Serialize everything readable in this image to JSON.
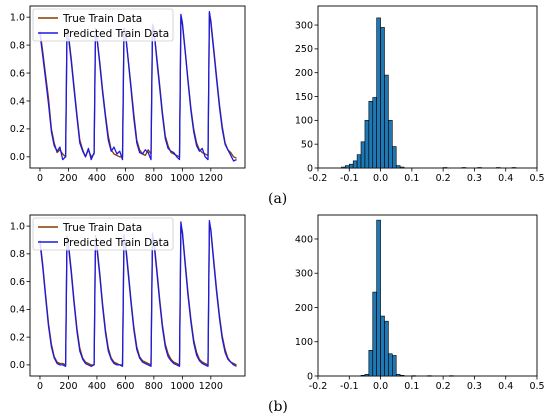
{
  "panel_labels": [
    "(a)",
    "(b)"
  ],
  "colors": {
    "true_series": "#8B3A00",
    "predicted_series": "#1a1ae6",
    "bar_fill": "#1f77b4",
    "bar_edge": "#000000"
  },
  "chart_data": [
    {
      "type": "line",
      "panel": "a",
      "xlim": [
        -70,
        1440
      ],
      "ylim": [
        -0.08,
        1.08
      ],
      "xticks": [
        0,
        200,
        400,
        600,
        800,
        1000,
        1200
      ],
      "yticks": [
        0.0,
        0.2,
        0.4,
        0.6,
        0.8,
        1.0
      ],
      "legend": "top-left",
      "series": [
        {
          "name": "True Train Data",
          "x": [
            0,
            20,
            40,
            60,
            80,
            100,
            120,
            140,
            160,
            180,
            190,
            200,
            220,
            240,
            260,
            280,
            300,
            320,
            340,
            360,
            380,
            390,
            400,
            420,
            440,
            460,
            480,
            500,
            520,
            540,
            560,
            580,
            590,
            600,
            620,
            640,
            660,
            680,
            700,
            720,
            740,
            760,
            780,
            790,
            800,
            820,
            840,
            860,
            880,
            900,
            920,
            940,
            960,
            980,
            990,
            1000,
            1020,
            1040,
            1060,
            1080,
            1100,
            1120,
            1140,
            1160,
            1180,
            1190,
            1200,
            1220,
            1240,
            1260,
            1280,
            1300,
            1320,
            1340,
            1360,
            1380
          ],
          "y": [
            0.9,
            0.75,
            0.58,
            0.42,
            0.2,
            0.1,
            0.03,
            0.05,
            0.02,
            0.0,
            0.9,
            0.88,
            0.7,
            0.5,
            0.3,
            0.12,
            0.05,
            0.0,
            0.05,
            0.0,
            0.02,
            0.9,
            0.85,
            0.68,
            0.48,
            0.3,
            0.15,
            0.05,
            0.02,
            0.01,
            0.0,
            0.0,
            0.92,
            0.88,
            0.7,
            0.5,
            0.3,
            0.12,
            0.05,
            0.02,
            0.01,
            0.05,
            0.02,
            0.93,
            0.9,
            0.72,
            0.52,
            0.32,
            0.15,
            0.08,
            0.03,
            0.02,
            0.01,
            0.0,
            1.0,
            0.95,
            0.75,
            0.55,
            0.35,
            0.2,
            0.1,
            0.05,
            0.03,
            0.02,
            0.01,
            1.03,
            0.98,
            0.78,
            0.58,
            0.38,
            0.22,
            0.1,
            0.05,
            0.03,
            0.0,
            -0.01
          ]
        },
        {
          "name": "Predicted Train Data",
          "x": [
            0,
            20,
            40,
            60,
            80,
            100,
            120,
            140,
            160,
            180,
            190,
            200,
            220,
            240,
            260,
            280,
            300,
            320,
            340,
            360,
            380,
            390,
            400,
            420,
            440,
            460,
            480,
            500,
            520,
            540,
            560,
            580,
            590,
            600,
            620,
            640,
            660,
            680,
            700,
            720,
            740,
            760,
            780,
            790,
            800,
            820,
            840,
            860,
            880,
            900,
            920,
            940,
            960,
            980,
            990,
            1000,
            1020,
            1040,
            1060,
            1080,
            1100,
            1120,
            1140,
            1160,
            1180,
            1190,
            1200,
            1220,
            1240,
            1260,
            1280,
            1300,
            1320,
            1340,
            1360,
            1380
          ],
          "y": [
            0.88,
            0.72,
            0.55,
            0.38,
            0.18,
            0.08,
            0.04,
            0.07,
            -0.02,
            0.0,
            0.92,
            0.86,
            0.68,
            0.48,
            0.28,
            0.1,
            0.04,
            0.0,
            0.06,
            -0.02,
            0.03,
            0.92,
            0.86,
            0.66,
            0.46,
            0.28,
            0.12,
            0.04,
            0.07,
            0.02,
            0.04,
            -0.02,
            0.92,
            0.9,
            0.69,
            0.48,
            0.27,
            0.1,
            0.03,
            0.02,
            0.05,
            0.03,
            -0.02,
            0.95,
            0.92,
            0.7,
            0.5,
            0.3,
            0.13,
            0.06,
            0.04,
            0.03,
            0.0,
            -0.02,
            1.02,
            0.96,
            0.76,
            0.54,
            0.33,
            0.18,
            0.08,
            0.04,
            0.06,
            0.0,
            -0.02,
            1.04,
            0.96,
            0.76,
            0.56,
            0.36,
            0.2,
            0.09,
            0.05,
            0.01,
            -0.03,
            -0.02
          ]
        }
      ]
    },
    {
      "type": "bar",
      "panel": "a",
      "xlim": [
        -0.2,
        0.5
      ],
      "ylim": [
        0,
        340
      ],
      "xticks": [
        -0.2,
        -0.1,
        0.0,
        0.1,
        0.2,
        0.3,
        0.4,
        0.5
      ],
      "yticks": [
        0,
        50,
        100,
        150,
        200,
        250,
        300
      ],
      "bin_width": 0.0125,
      "bins": [
        {
          "x": -0.125,
          "v": 2
        },
        {
          "x": -0.1125,
          "v": 5
        },
        {
          "x": -0.1,
          "v": 8
        },
        {
          "x": -0.0875,
          "v": 15
        },
        {
          "x": -0.075,
          "v": 28
        },
        {
          "x": -0.0625,
          "v": 55
        },
        {
          "x": -0.05,
          "v": 100
        },
        {
          "x": -0.0375,
          "v": 140
        },
        {
          "x": -0.025,
          "v": 148
        },
        {
          "x": -0.0125,
          "v": 315
        },
        {
          "x": 0.0,
          "v": 295
        },
        {
          "x": 0.0125,
          "v": 195
        },
        {
          "x": 0.025,
          "v": 100
        },
        {
          "x": 0.0375,
          "v": 45
        },
        {
          "x": 0.05,
          "v": 5
        },
        {
          "x": 0.0625,
          "v": 2
        },
        {
          "x": 0.2,
          "v": 1
        },
        {
          "x": 0.26,
          "v": 1
        },
        {
          "x": 0.31,
          "v": 1
        },
        {
          "x": 0.37,
          "v": 1
        },
        {
          "x": 0.42,
          "v": 1
        }
      ]
    },
    {
      "type": "line",
      "panel": "b",
      "xlim": [
        -70,
        1440
      ],
      "ylim": [
        -0.08,
        1.08
      ],
      "xticks": [
        0,
        200,
        400,
        600,
        800,
        1000,
        1200
      ],
      "yticks": [
        0.0,
        0.2,
        0.4,
        0.6,
        0.8,
        1.0
      ],
      "legend": "top-left",
      "series": [
        {
          "name": "True Train Data",
          "x": [
            0,
            20,
            40,
            60,
            80,
            100,
            120,
            140,
            160,
            180,
            190,
            200,
            220,
            240,
            260,
            280,
            300,
            320,
            340,
            360,
            380,
            390,
            400,
            420,
            440,
            460,
            480,
            500,
            520,
            540,
            560,
            580,
            590,
            600,
            620,
            640,
            660,
            680,
            700,
            720,
            740,
            760,
            780,
            790,
            800,
            820,
            840,
            860,
            880,
            900,
            920,
            940,
            960,
            980,
            990,
            1000,
            1020,
            1040,
            1060,
            1080,
            1100,
            1120,
            1140,
            1160,
            1180,
            1190,
            1200,
            1220,
            1240,
            1260,
            1280,
            1300,
            1320,
            1340,
            1360,
            1380
          ],
          "y": [
            0.9,
            0.72,
            0.5,
            0.3,
            0.15,
            0.06,
            0.02,
            0.01,
            0.01,
            0.0,
            0.92,
            0.88,
            0.68,
            0.46,
            0.26,
            0.12,
            0.05,
            0.02,
            0.01,
            0.0,
            0.0,
            0.92,
            0.86,
            0.66,
            0.44,
            0.25,
            0.12,
            0.05,
            0.02,
            0.01,
            0.0,
            0.0,
            0.93,
            0.89,
            0.68,
            0.46,
            0.27,
            0.13,
            0.06,
            0.03,
            0.02,
            0.01,
            0.0,
            0.94,
            0.9,
            0.7,
            0.48,
            0.29,
            0.15,
            0.08,
            0.04,
            0.02,
            0.01,
            0.0,
            1.0,
            0.96,
            0.74,
            0.52,
            0.33,
            0.18,
            0.09,
            0.04,
            0.02,
            0.01,
            0.0,
            1.02,
            0.98,
            0.76,
            0.55,
            0.36,
            0.21,
            0.11,
            0.05,
            0.02,
            0.01,
            0.0
          ]
        },
        {
          "name": "Predicted Train Data",
          "x": [
            0,
            20,
            40,
            60,
            80,
            100,
            120,
            140,
            160,
            180,
            190,
            200,
            220,
            240,
            260,
            280,
            300,
            320,
            340,
            360,
            380,
            390,
            400,
            420,
            440,
            460,
            480,
            500,
            520,
            540,
            560,
            580,
            590,
            600,
            620,
            640,
            660,
            680,
            700,
            720,
            740,
            760,
            780,
            790,
            800,
            820,
            840,
            860,
            880,
            900,
            920,
            940,
            960,
            980,
            990,
            1000,
            1020,
            1040,
            1060,
            1080,
            1100,
            1120,
            1140,
            1160,
            1180,
            1190,
            1200,
            1220,
            1240,
            1260,
            1280,
            1300,
            1320,
            1340,
            1360,
            1380
          ],
          "y": [
            0.88,
            0.7,
            0.48,
            0.28,
            0.13,
            0.05,
            0.01,
            0.0,
            0.0,
            -0.01,
            0.93,
            0.86,
            0.66,
            0.44,
            0.24,
            0.1,
            0.04,
            0.01,
            0.0,
            -0.01,
            0.0,
            0.93,
            0.84,
            0.64,
            0.42,
            0.23,
            0.1,
            0.04,
            0.01,
            0.0,
            0.0,
            -0.01,
            0.94,
            0.87,
            0.66,
            0.44,
            0.25,
            0.11,
            0.05,
            0.02,
            0.01,
            0.0,
            -0.01,
            0.95,
            0.88,
            0.68,
            0.46,
            0.27,
            0.13,
            0.06,
            0.03,
            0.01,
            0.0,
            -0.01,
            1.03,
            0.95,
            0.72,
            0.5,
            0.31,
            0.16,
            0.07,
            0.03,
            0.01,
            0.0,
            -0.01,
            1.04,
            0.97,
            0.74,
            0.53,
            0.34,
            0.19,
            0.09,
            0.04,
            0.02,
            0.0,
            -0.01
          ]
        }
      ]
    },
    {
      "type": "bar",
      "panel": "b",
      "xlim": [
        -0.2,
        0.5
      ],
      "ylim": [
        0,
        470
      ],
      "xticks": [
        -0.2,
        -0.1,
        0.0,
        0.1,
        0.2,
        0.3,
        0.4,
        0.5
      ],
      "yticks": [
        0,
        100,
        200,
        300,
        400
      ],
      "bin_width": 0.0125,
      "bins": [
        {
          "x": -0.0625,
          "v": 2
        },
        {
          "x": -0.05,
          "v": 5
        },
        {
          "x": -0.0375,
          "v": 75
        },
        {
          "x": -0.025,
          "v": 245
        },
        {
          "x": -0.0125,
          "v": 455
        },
        {
          "x": 0.0,
          "v": 175
        },
        {
          "x": 0.0125,
          "v": 160
        },
        {
          "x": 0.025,
          "v": 65
        },
        {
          "x": 0.0375,
          "v": 60
        },
        {
          "x": 0.05,
          "v": 5
        },
        {
          "x": 0.0625,
          "v": 2
        },
        {
          "x": 0.1,
          "v": 1
        },
        {
          "x": 0.15,
          "v": 1
        },
        {
          "x": 0.22,
          "v": 1
        }
      ]
    }
  ]
}
